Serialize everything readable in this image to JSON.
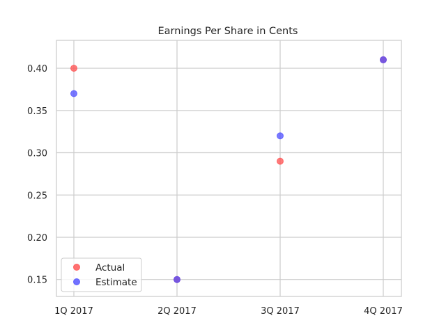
{
  "chart_data": {
    "type": "scatter",
    "title": "Earnings Per Share in Cents",
    "xlabel": "",
    "ylabel": "",
    "categories": [
      "1Q 2017",
      "2Q 2017",
      "3Q 2017",
      "4Q 2017"
    ],
    "series": [
      {
        "name": "Actual",
        "color": "#ff4d4d",
        "values": [
          0.4,
          0.15,
          0.29,
          0.41
        ]
      },
      {
        "name": "Estimate",
        "color": "#4d4dff",
        "values": [
          0.37,
          0.15,
          0.32,
          0.41
        ]
      }
    ],
    "yticks": [
      "0.15",
      "0.20",
      "0.25",
      "0.30",
      "0.35",
      "0.40"
    ],
    "ylim": [
      0.13,
      0.433
    ],
    "grid": true,
    "legend_position": "lower-left"
  }
}
